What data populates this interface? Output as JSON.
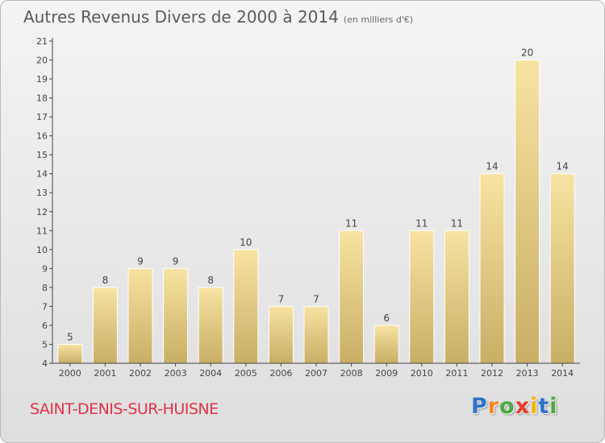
{
  "title": "Autres Revenus Divers de 2000 à 2014",
  "subtitle": "(en milliers d'€)",
  "commune": "SAINT-DENIS-SUR-HUISNE",
  "logo": {
    "letters": [
      "P",
      "r",
      "o",
      "x",
      "i",
      "t",
      "i"
    ],
    "colors": [
      "#2e74c9",
      "#f08a1c",
      "#49a83f",
      "#e63a2e",
      "#f0b400",
      "#2e74c9",
      "#49a83f"
    ]
  },
  "chart_data": {
    "type": "bar",
    "categories": [
      "2000",
      "2001",
      "2002",
      "2003",
      "2004",
      "2005",
      "2006",
      "2007",
      "2008",
      "2009",
      "2010",
      "2011",
      "2012",
      "2013",
      "2014"
    ],
    "values": [
      5,
      8,
      9,
      9,
      8,
      10,
      7,
      7,
      11,
      6,
      11,
      11,
      14,
      20,
      14
    ],
    "ylim": [
      4,
      21
    ],
    "yticks": [
      4,
      5,
      6,
      7,
      8,
      9,
      10,
      11,
      12,
      13,
      14,
      15,
      16,
      17,
      18,
      19,
      20,
      21
    ],
    "grid": false,
    "colors": {
      "bar_top": "#f7e3a2",
      "bar_bottom": "#c9ae65",
      "axis": "#444444",
      "text": "#444444"
    }
  }
}
